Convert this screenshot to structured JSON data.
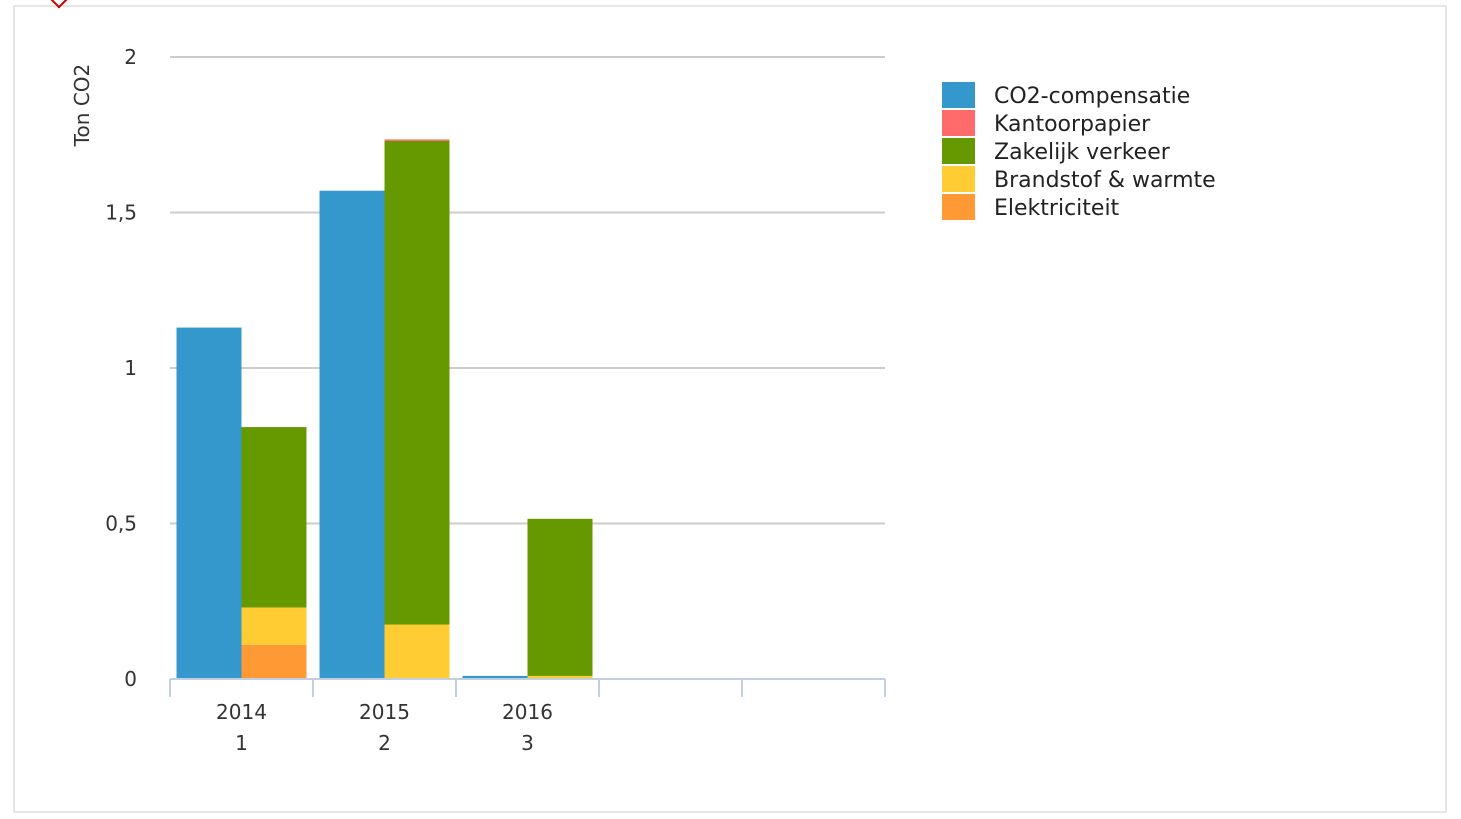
{
  "chart_data": {
    "type": "bar",
    "stacked": true,
    "title": "",
    "ylabel": "Ton CO2",
    "ylim": [
      0,
      2
    ],
    "yticks": [
      {
        "value": 0,
        "label": "0"
      },
      {
        "value": 0.5,
        "label": "0,5"
      },
      {
        "value": 1,
        "label": "1"
      },
      {
        "value": 1.5,
        "label": "1,5"
      },
      {
        "value": 2,
        "label": "2"
      }
    ],
    "categories": [
      {
        "line1": "2014",
        "line2": "1"
      },
      {
        "line1": "2015",
        "line2": "2"
      },
      {
        "line1": "2016",
        "line2": "3"
      },
      {
        "line1": "",
        "line2": ""
      },
      {
        "line1": "",
        "line2": ""
      }
    ],
    "series": [
      {
        "name": "CO2-compensatie",
        "color": "#3498cc",
        "stack": "compensation",
        "values": [
          1.13,
          1.57,
          0.01,
          0,
          0
        ]
      },
      {
        "name": "Kantoorpapier",
        "color": "#ff6b6b",
        "stack": "emission",
        "values": [
          0,
          0.005,
          0,
          0,
          0
        ]
      },
      {
        "name": "Zakelijk verkeer",
        "color": "#669900",
        "stack": "emission",
        "values": [
          0.58,
          1.555,
          0.505,
          0,
          0
        ]
      },
      {
        "name": "Brandstof & warmte",
        "color": "#ffcc33",
        "stack": "emission",
        "values": [
          0.12,
          0.175,
          0.01,
          0,
          0
        ]
      },
      {
        "name": "Elektriciteit",
        "color": "#ff9933",
        "stack": "emission",
        "values": [
          0.11,
          0,
          0,
          0,
          0
        ]
      }
    ],
    "legend_position": "top-right",
    "grid": true
  }
}
